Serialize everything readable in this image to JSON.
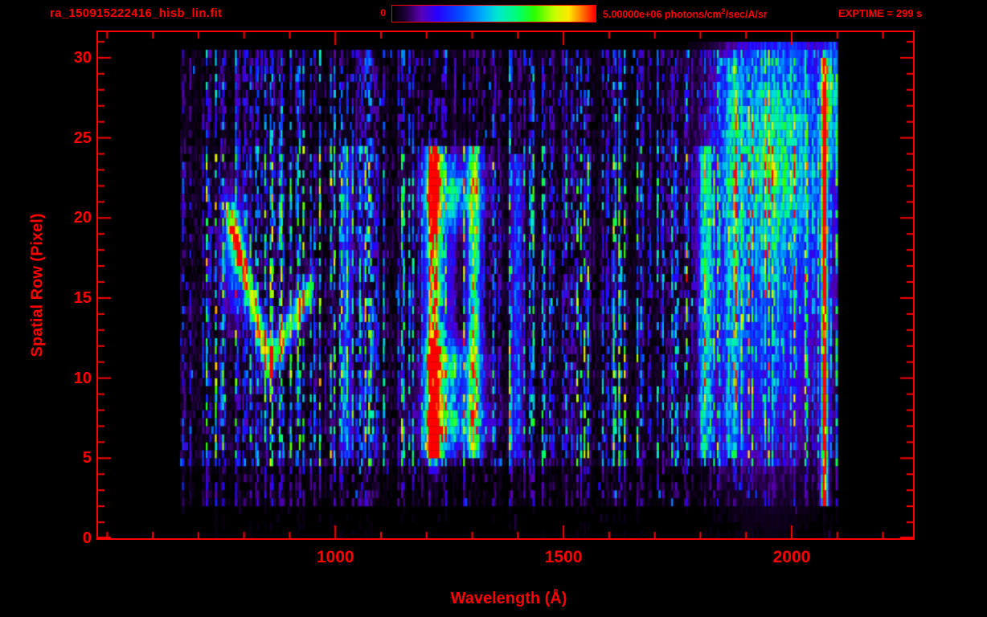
{
  "colors": {
    "background": "#000000",
    "accent": "#ff0000"
  },
  "header": {
    "filename": "ra_150915222416_hisb_lin.fit",
    "exptime": "EXPTIME = 299 s",
    "colorbar": {
      "min_label": "0",
      "max_prefix": "5.00000e+06 photons/cm",
      "max_sup": "2",
      "max_suffix": "/sec/A/sr"
    }
  },
  "chart_data": {
    "type": "heatmap",
    "title": "ra_150915222416_hisb_lin.fit",
    "xlabel": "Wavelength (Å)",
    "ylabel": "Spatial Row (Pixel)",
    "x_range": [
      480,
      2266
    ],
    "y_range": [
      0,
      31.6
    ],
    "x_major_ticks": [
      1000,
      1500,
      2000
    ],
    "x_minor_step": 100,
    "y_major_ticks": [
      0,
      5,
      10,
      15,
      20,
      25,
      30
    ],
    "y_minor_step": 1,
    "grid": false,
    "exposure_seconds": 299,
    "colorbar": {
      "min": 0,
      "max": 5000000,
      "units": "photons/cm^2/sec/A/sr"
    },
    "colormap_stops": [
      [
        0.0,
        "#000000"
      ],
      [
        0.06,
        "#1a0033"
      ],
      [
        0.14,
        "#5a00b4"
      ],
      [
        0.22,
        "#2800ff"
      ],
      [
        0.34,
        "#0050ff"
      ],
      [
        0.44,
        "#00a8ff"
      ],
      [
        0.52,
        "#00e8d0"
      ],
      [
        0.62,
        "#00ff70"
      ],
      [
        0.7,
        "#2aff00"
      ],
      [
        0.8,
        "#c8ff00"
      ],
      [
        0.87,
        "#ffe800"
      ],
      [
        0.93,
        "#ff8000"
      ],
      [
        1.0,
        "#ff0000"
      ]
    ],
    "data_extent": {
      "lambda": [
        660,
        2100
      ],
      "rows": [
        0,
        31
      ]
    },
    "row_bands": [
      {
        "from": 0,
        "to": 1.8,
        "level": 0.03
      },
      {
        "from": 1.8,
        "to": 4.6,
        "level": 0.28
      },
      {
        "from": 4.6,
        "to": 24.6,
        "level": 1.0
      },
      {
        "from": 24.6,
        "to": 30.4,
        "level": 0.6
      }
    ],
    "render": {
      "seed": 20150915,
      "lambda_step": 4,
      "row_step": 0.5
    },
    "features": [
      {
        "name": "lyman-alpha-emission-line",
        "kind": "vline",
        "lambda": 1216,
        "sigma_lambda": 12,
        "row_min": 4.8,
        "row_max": 24.5,
        "amplitude": 0.85
      },
      {
        "name": "oi-1304-emission-line",
        "kind": "vline",
        "lambda": 1304,
        "sigma_lambda": 10,
        "row_min": 4.8,
        "row_max": 24.5,
        "amplitude": 0.55
      },
      {
        "name": "lya-hotspot-row-5.6",
        "kind": "blob",
        "lambda": 1216,
        "row": 5.6,
        "sigma_lambda": 10,
        "sigma_row": 0.9,
        "amplitude": 0.5
      },
      {
        "name": "lya-hotspot-row-7",
        "kind": "blob",
        "lambda": 1216,
        "row": 7.2,
        "sigma_lambda": 10,
        "sigma_row": 1.0,
        "amplitude": 0.55
      },
      {
        "name": "lya-hotspot-row-11",
        "kind": "blob",
        "lambda": 1216,
        "row": 11.0,
        "sigma_lambda": 10,
        "sigma_row": 1.0,
        "amplitude": 0.55
      },
      {
        "name": "lya-hotspot-row-21.7",
        "kind": "blob",
        "lambda": 1216,
        "row": 21.7,
        "sigma_lambda": 10,
        "sigma_row": 1.2,
        "amplitude": 0.55
      },
      {
        "name": "cross-band-row-7",
        "kind": "blob",
        "lambda": 1262,
        "row": 7.4,
        "sigma_lambda": 45,
        "sigma_row": 1.1,
        "amplitude": 0.42
      },
      {
        "name": "cross-band-row-10.7",
        "kind": "blob",
        "lambda": 1262,
        "row": 10.7,
        "sigma_lambda": 40,
        "sigma_row": 1.0,
        "amplitude": 0.38
      },
      {
        "name": "cross-band-row-21.5",
        "kind": "blob",
        "lambda": 1260,
        "row": 21.5,
        "sigma_lambda": 40,
        "sigma_row": 1.4,
        "amplitude": 0.38
      },
      {
        "name": "v-shaped-trace",
        "kind": "path",
        "points": [
          [
            762,
            20.3
          ],
          [
            800,
            16.4
          ],
          [
            852,
            10.6
          ],
          [
            900,
            13.3
          ],
          [
            950,
            15.7
          ]
        ],
        "sigma_row": 0.75,
        "amplitude": 0.6
      },
      {
        "name": "v-trace-secondary",
        "kind": "path",
        "points": [
          [
            772,
            20.6
          ],
          [
            822,
            15.2
          ],
          [
            862,
            11.2
          ]
        ],
        "sigma_row": 0.6,
        "amplitude": 0.42
      },
      {
        "name": "v-region-glow",
        "kind": "blob",
        "lambda": 780,
        "row": 17.8,
        "sigma_lambda": 16,
        "sigma_row": 2.4,
        "amplitude": 0.38
      },
      {
        "name": "column-1025",
        "kind": "vline",
        "lambda": 1025,
        "sigma_lambda": 8,
        "row_min": 4.8,
        "row_max": 24.3,
        "amplitude": 0.28
      },
      {
        "name": "column-1252",
        "kind": "vline",
        "lambda": 1252,
        "sigma_lambda": 8,
        "row_min": 5,
        "row_max": 24,
        "amplitude": 0.16
      },
      {
        "name": "column-1400",
        "kind": "vline",
        "lambda": 1398,
        "sigma_lambda": 9,
        "row_min": 4.8,
        "row_max": 24,
        "amplitude": 0.2
      },
      {
        "name": "column-1810",
        "kind": "vline",
        "lambda": 1812,
        "sigma_lambda": 10,
        "row_min": 4.8,
        "row_max": 24.5,
        "amplitude": 0.42
      },
      {
        "name": "column-1870",
        "kind": "vline",
        "lambda": 1870,
        "sigma_lambda": 14,
        "row_min": 4.8,
        "row_max": 30,
        "amplitude": 0.25
      },
      {
        "name": "bright-region-1960-upper",
        "kind": "blob",
        "lambda": 1965,
        "row": 24,
        "sigma_lambda": 80,
        "sigma_row": 6,
        "amplitude": 0.5
      },
      {
        "name": "region-1950-lower",
        "kind": "blob",
        "lambda": 1950,
        "row": 11,
        "sigma_lambda": 80,
        "sigma_row": 5,
        "amplitude": 0.16
      },
      {
        "name": "saturated-edge-line-2072",
        "kind": "vline",
        "lambda": 2072,
        "sigma_lambda": 5,
        "row_min": 2,
        "row_max": 30.2,
        "amplitude": 1.0
      },
      {
        "name": "corner-glow-2090",
        "kind": "blob",
        "lambda": 2090,
        "row": 28,
        "sigma_lambda": 14,
        "sigma_row": 3,
        "amplitude": 0.35
      }
    ]
  }
}
